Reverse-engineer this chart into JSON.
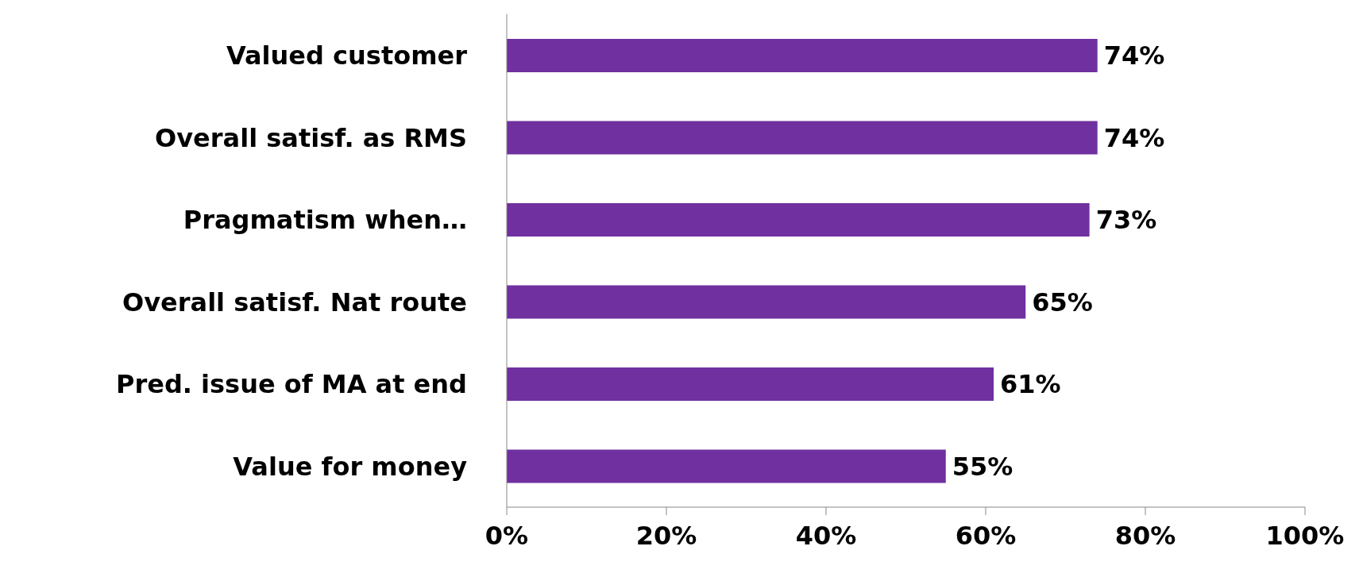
{
  "chart_data": {
    "type": "bar",
    "orientation": "horizontal",
    "categories": [
      "Valued customer",
      "Overall satisf. as RMS",
      "Pragmatism when…",
      "Overall satisf. Nat route",
      "Pred. issue of MA at end",
      "Value for money"
    ],
    "values": [
      74,
      74,
      73,
      65,
      61,
      55
    ],
    "value_labels": [
      "74%",
      "74%",
      "73%",
      "65%",
      "61%",
      "55%"
    ],
    "color": "#7030a0",
    "xlim": [
      0,
      100
    ],
    "xticks": [
      {
        "value": 0,
        "label": "0%"
      },
      {
        "value": 20,
        "label": "20%"
      },
      {
        "value": 40,
        "label": "40%"
      },
      {
        "value": 60,
        "label": "60%"
      },
      {
        "value": 80,
        "label": "80%"
      },
      {
        "value": 100,
        "label": "100%"
      }
    ],
    "grid": false,
    "legend": false
  }
}
